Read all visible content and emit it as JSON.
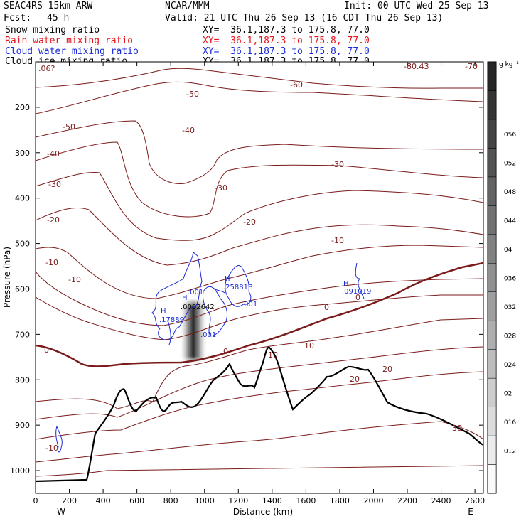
{
  "header": {
    "model": "SEAC4RS 15km ARW",
    "center": "NCAR/MMM",
    "init": "Init: 00 UTC Wed 25 Sep 13",
    "fcst_label": "Fcst:",
    "fcst_value": "45 h",
    "valid": "Valid: 21 UTC Thu 26 Sep 13 (16 CDT Thu 26 Sep 13)"
  },
  "fields": [
    {
      "name": "Snow mixing ratio",
      "xy": "XY=  36.1,187.3 to 175.8, 77.0",
      "color": "#000000"
    },
    {
      "name": "Rain water mixing ratio",
      "xy": "XY=  36.1,187.3 to 175.8, 77.0",
      "color": "#e8141c"
    },
    {
      "name": "Cloud water mixing ratio",
      "xy": "XY=  36.1,187.3 to 175.8, 77.0",
      "color": "#1a2ad8"
    },
    {
      "name": "Cloud ice mixing ratio",
      "xy": "XY=  36.1,187.3 to 175.8, 77.0",
      "color": "#000000"
    }
  ],
  "colorbar": {
    "unit": "g kg⁻¹",
    "tick_labels": [
      ".012",
      ".016",
      ".02",
      ".024",
      ".028",
      ".032",
      ".036",
      ".04",
      ".044",
      ".048",
      ".052",
      ".056"
    ]
  },
  "chart_data": {
    "type": "contour cross-section",
    "xlabel": "Distance (km)",
    "ylabel": "Pressure (hPa)",
    "x_ticks": [
      "0",
      "200",
      "400",
      "600",
      "800",
      "1000",
      "1200",
      "1400",
      "1600",
      "1800",
      "2000",
      "2200",
      "2400",
      "2600"
    ],
    "y_ticks": [
      "200",
      "300",
      "400",
      "500",
      "600",
      "700",
      "800",
      "900",
      "1000"
    ],
    "x_end_labels": {
      "left": "W",
      "right": "E"
    },
    "temperature_contour_labels": [
      ".06?",
      "-50",
      "-60",
      "-70",
      "-80.43",
      "-50",
      "-40",
      "-30",
      "-40",
      "-30",
      "-30",
      "-20",
      "-20",
      "-10",
      "-10",
      "-10",
      "0",
      "0",
      "0",
      "0",
      "10",
      "10",
      "20",
      "20",
      "30",
      "-10"
    ],
    "cloud_water_labels": [
      "H",
      ".001",
      ".0002642",
      "H",
      ".17889",
      "H",
      ".25881B",
      ".001",
      ".001",
      "H",
      ".091019"
    ],
    "series": [
      {
        "name": "Temperature contours",
        "color": "#7b1a1a",
        "units": "°C"
      },
      {
        "name": "0°C isotherm",
        "color": "#7b1a1a"
      },
      {
        "name": "Terrain",
        "color": "#000000"
      },
      {
        "name": "Cloud water mixing ratio",
        "color": "#1a2ad8"
      },
      {
        "name": "Snow mixing ratio",
        "color": "#555555",
        "max_location_km": 960,
        "max_pressure_range_hpa": [
          635,
          760
        ]
      }
    ]
  }
}
